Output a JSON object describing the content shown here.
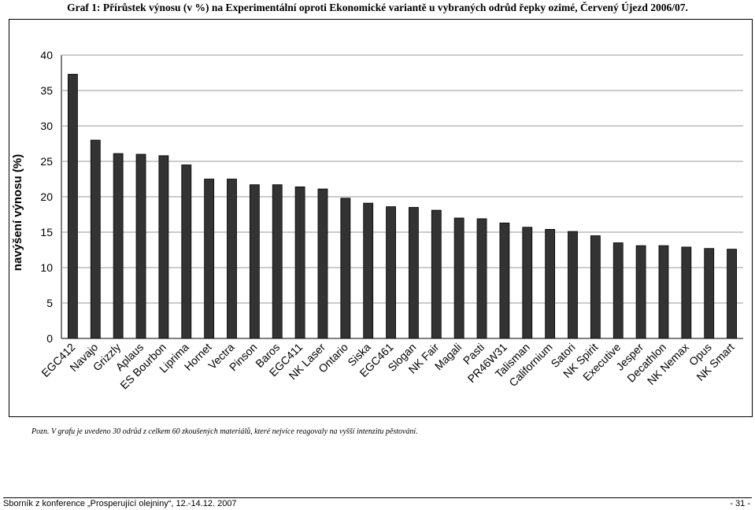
{
  "title": "Graf 1: Přírůstek výnosu (v %) na Experimentální oproti Ekonomické variantě u vybraných odrůd řepky ozimé, Červený Újezd 2006/07.",
  "note": "Pozn. V grafu je uvedeno 30 odrůd z celkem 60 zkoušených materiálů, které nejvíce reagovaly na vyšší intenzitu pěstování.",
  "footer": {
    "left": "Sborník z konference „Prosperující olejniny“, 12.-14.12. 2007",
    "right": "- 31 -"
  },
  "chart_data": {
    "type": "bar",
    "ylabel": "navýšení výnosu (%)",
    "xlabel": "",
    "ylim": [
      0,
      40
    ],
    "yticks": [
      0,
      5,
      10,
      15,
      20,
      25,
      30,
      35,
      40
    ],
    "grid": true,
    "bar_color": "#333333",
    "categories": [
      "EGC412",
      "Navajo",
      "Grizzly",
      "Aplaus",
      "ES Bourbon",
      "Liprima",
      "Hornet",
      "Vectra",
      "Pinson",
      "Baros",
      "EGC411",
      "NK Laser",
      "Ontario",
      "Siska",
      "EGC461",
      "Slogan",
      "NK Fair",
      "Magali",
      "Pasti",
      "PR46W31",
      "Talisman",
      "Californium",
      "Satori",
      "NK Spirit",
      "Executive",
      "Jesper",
      "Decathlon",
      "NK Nemax",
      "Opus",
      "NK Smart"
    ],
    "values": [
      37.3,
      28.0,
      26.1,
      26.0,
      25.8,
      24.5,
      22.5,
      22.5,
      21.7,
      21.7,
      21.4,
      21.1,
      19.8,
      19.1,
      18.6,
      18.5,
      18.1,
      17.0,
      16.9,
      16.3,
      15.7,
      15.4,
      15.1,
      14.5,
      13.5,
      13.1,
      13.1,
      12.9,
      12.7,
      12.6
    ]
  }
}
